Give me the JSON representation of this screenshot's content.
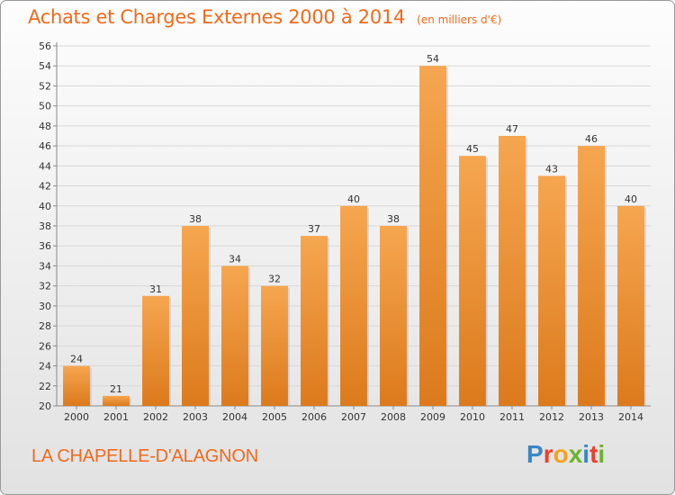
{
  "title": "Achats et Charges Externes 2000 à 2014",
  "subtitle": "(en milliers d'€)",
  "commune": "LA CHAPELLE-D'ALAGNON",
  "logo": {
    "text": "Proxiti",
    "letters": [
      {
        "char": "P",
        "color": "#3a86c8"
      },
      {
        "char": "r",
        "color": "#e8412c"
      },
      {
        "char": "o",
        "color": "#f3a21b"
      },
      {
        "char": "x",
        "color": "#6ab42d"
      },
      {
        "char": "i",
        "color": "#3a86c8"
      },
      {
        "char": "t",
        "color": "#e8412c"
      },
      {
        "char": "i",
        "color": "#6ab42d"
      }
    ]
  },
  "colors": {
    "bar_top": "#f6a650",
    "bar_bottom": "#dc7a1c",
    "title": "#ef6a1c"
  },
  "chart_data": {
    "type": "bar",
    "categories": [
      "2000",
      "2001",
      "2002",
      "2003",
      "2004",
      "2005",
      "2006",
      "2007",
      "2008",
      "2009",
      "2010",
      "2011",
      "2012",
      "2013",
      "2014"
    ],
    "values": [
      24,
      21,
      31,
      38,
      34,
      32,
      37,
      40,
      38,
      54,
      45,
      47,
      43,
      46,
      40
    ],
    "ylim": [
      20,
      56
    ],
    "yticks": [
      20,
      22,
      24,
      26,
      28,
      30,
      32,
      34,
      36,
      38,
      40,
      42,
      44,
      46,
      48,
      50,
      52,
      54,
      56
    ],
    "grid": true
  }
}
